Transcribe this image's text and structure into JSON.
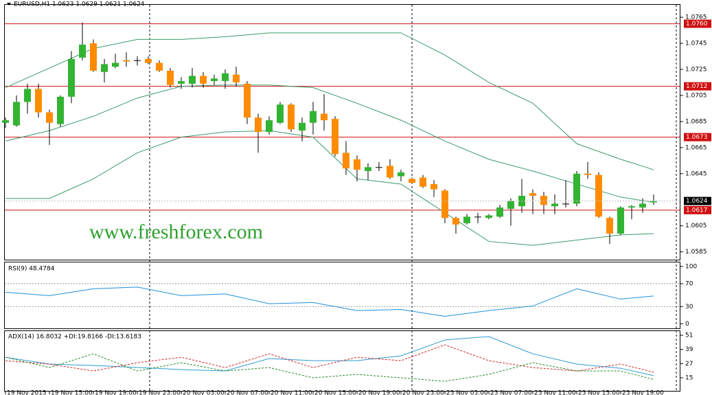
{
  "chart_data": [
    {
      "type": "candlestick",
      "title": "EURUSD,H1  1.0623 1.0629 1.0621 1.0624",
      "watermark": "www.freshforex.com",
      "categories": [
        "19 Nov 2015",
        null,
        null,
        null,
        "19 Nov 15:00",
        null,
        null,
        null,
        "19 Nov 19:00",
        null,
        null,
        null,
        "19 Nov 23:00",
        null,
        null,
        null,
        "20 Nov 03:00",
        null,
        null,
        null,
        "20 Nov 07:00",
        null,
        null,
        null,
        "20 Nov 11:00",
        null,
        null,
        null,
        "20 Nov 15:00",
        null,
        null,
        null,
        "20 Nov 19:00",
        null,
        null,
        null,
        "20 Nov 23:00",
        null,
        null,
        null,
        "23 Nov 03:00",
        null,
        null,
        null,
        "23 Nov 07:00",
        null,
        null,
        null,
        "23 Nov 11:00",
        null,
        null,
        null,
        "23 Nov 15:00",
        null,
        null,
        null,
        "23 Nov 19:00",
        null,
        null,
        null
      ],
      "open": [
        1.0684,
        1.0682,
        1.07,
        1.071,
        1.0692,
        1.0683,
        1.0704,
        1.0734,
        1.0745,
        1.0723,
        1.0727,
        1.0732,
        1.0732,
        1.0733,
        1.073,
        1.0724,
        1.0714,
        1.0714,
        1.072,
        1.0716,
        1.0716,
        1.0721,
        1.0714,
        1.0688,
        1.0677,
        1.0684,
        1.0698,
        1.0678,
        1.0684,
        1.0691,
        1.0687,
        1.0661,
        1.0656,
        1.0647,
        1.065,
        1.0651,
        1.0643,
        1.0641,
        1.0642,
        1.0637,
        1.0632,
        1.0611,
        1.0607,
        1.0612,
        1.0611,
        1.0612,
        1.0618,
        1.062,
        1.063,
        1.0628,
        1.062,
        1.0622,
        1.0622,
        1.0645,
        1.0644,
        1.0611,
        1.0599,
        1.0619,
        1.0619,
        1.0623
      ],
      "high": [
        1.0688,
        1.0705,
        1.0714,
        1.0714,
        1.0694,
        1.0705,
        1.0739,
        1.0761,
        1.0748,
        1.0733,
        1.0737,
        1.0738,
        1.0735,
        1.0735,
        1.0732,
        1.0726,
        1.0719,
        1.0726,
        1.0723,
        1.0721,
        1.0725,
        1.0727,
        1.0716,
        1.0691,
        1.0689,
        1.07,
        1.0699,
        1.0688,
        1.07,
        1.0706,
        1.0689,
        1.067,
        1.0659,
        1.0653,
        1.0654,
        1.0656,
        1.0648,
        1.0642,
        1.0644,
        1.064,
        1.0633,
        1.0612,
        1.0614,
        1.0615,
        1.0614,
        1.0621,
        1.0626,
        1.0641,
        1.0633,
        1.0631,
        1.0629,
        1.064,
        1.0647,
        1.0654,
        1.0646,
        1.0612,
        1.062,
        1.0621,
        1.0626,
        1.0629
      ],
      "low": [
        1.068,
        1.0681,
        1.0691,
        1.0688,
        1.0667,
        1.0681,
        1.0699,
        1.0732,
        1.0723,
        1.0715,
        1.0726,
        1.0727,
        1.0728,
        1.0729,
        1.0723,
        1.0711,
        1.071,
        1.0711,
        1.0711,
        1.0713,
        1.071,
        1.0712,
        1.0683,
        1.0661,
        1.0675,
        1.0683,
        1.0677,
        1.067,
        1.0675,
        1.0678,
        1.0658,
        1.0644,
        1.0639,
        1.064,
        1.0647,
        1.0641,
        1.0639,
        1.0637,
        1.0634,
        1.0627,
        1.0607,
        1.0599,
        1.0606,
        1.0607,
        1.061,
        1.0611,
        1.0605,
        1.0615,
        1.0614,
        1.0614,
        1.0614,
        1.0619,
        1.062,
        1.0641,
        1.0611,
        1.0591,
        1.0598,
        1.061,
        1.0615,
        1.0621
      ],
      "close": [
        1.0686,
        1.07,
        1.071,
        1.0692,
        1.0684,
        1.0704,
        1.0733,
        1.0744,
        1.0724,
        1.0729,
        1.073,
        1.0731,
        1.0732,
        1.073,
        1.0724,
        1.0713,
        1.0716,
        1.072,
        1.0714,
        1.0718,
        1.0722,
        1.0715,
        1.0688,
        1.0677,
        1.0686,
        1.0698,
        1.0679,
        1.0684,
        1.0693,
        1.0686,
        1.066,
        1.0649,
        1.0648,
        1.065,
        1.065,
        1.0642,
        1.0646,
        1.0638,
        1.0635,
        1.0633,
        1.0611,
        1.0606,
        1.0612,
        1.0612,
        1.0613,
        1.0619,
        1.0624,
        1.0628,
        1.0628,
        1.0621,
        1.0622,
        1.0622,
        1.0645,
        1.0644,
        1.0612,
        1.0599,
        1.0619,
        1.062,
        1.0622,
        1.0624
      ],
      "up_color": "#32b432",
      "down_color": "#ff8c00",
      "doji_color": "#000000",
      "bands": {
        "color": "#3a9a6a",
        "x": [
          0,
          4,
          8,
          12,
          16,
          20,
          24,
          28,
          32,
          36,
          40,
          44,
          48,
          52,
          56,
          59
        ],
        "upper": [
          1.0711,
          1.0726,
          1.0741,
          1.0748,
          1.0748,
          1.075,
          1.0753,
          1.0753,
          1.0753,
          1.0753,
          1.0736,
          1.0715,
          1.0699,
          1.0668,
          1.0656,
          1.0648
        ],
        "middle": [
          1.067,
          1.0678,
          1.0689,
          1.0703,
          1.0712,
          1.0713,
          1.0713,
          1.0711,
          1.0699,
          1.0686,
          1.067,
          1.0656,
          1.0647,
          1.0637,
          1.0627,
          1.0623
        ],
        "lower": [
          1.0626,
          1.0626,
          1.0641,
          1.0661,
          1.0673,
          1.0677,
          1.0678,
          1.0673,
          1.0641,
          1.0637,
          1.0615,
          1.0593,
          1.059,
          1.0594,
          1.0598,
          1.0599
        ]
      },
      "levels": [
        {
          "value": 1.076,
          "label": "1.0760"
        },
        1.0712,
        1.0673,
        1.0617
      ],
      "level_color": "#d01010",
      "current": 1.0624,
      "ylim": [
        1.0579,
        1.0774
      ],
      "yticks": [
        1.0765,
        1.0745,
        1.0725,
        1.0705,
        1.0685,
        1.0665,
        1.0645,
        1.0605,
        1.0585
      ]
    },
    {
      "type": "line",
      "title": "RSI(9) 48.4784",
      "x": [
        0,
        4,
        8,
        12,
        16,
        20,
        24,
        28,
        32,
        36,
        40,
        44,
        48,
        52,
        56,
        59
      ],
      "series": [
        {
          "color": "#1e90dc",
          "values": [
            55,
            49,
            61,
            64,
            49,
            52,
            35,
            37,
            23,
            25,
            13,
            23,
            31,
            61,
            43,
            48.4784
          ]
        }
      ],
      "levels": [
        30,
        70
      ],
      "ylim": [
        -8,
        107
      ],
      "yticks": [
        0,
        30,
        70,
        100
      ]
    },
    {
      "type": "line",
      "title": "ADX(14) 16.8032 +DI:19.8166 -DI:13.6183",
      "x": [
        0,
        4,
        8,
        12,
        16,
        20,
        24,
        28,
        32,
        36,
        40,
        44,
        48,
        52,
        56,
        59
      ],
      "series": [
        {
          "color": "#2a9ad0",
          "values": [
            32.4,
            26.6,
            25.5,
            23.7,
            22.0,
            20.8,
            31.3,
            29.5,
            29.5,
            33.6,
            47.0,
            49.9,
            35.3,
            26.6,
            23.1,
            16.8032
          ]
        },
        {
          "color": "#cc2222",
          "dashed": true,
          "values": [
            29.5,
            26.6,
            20.8,
            27.8,
            32.4,
            23.7,
            35.3,
            23.7,
            32.4,
            29.5,
            42.9,
            29.5,
            23.7,
            20.8,
            26.6,
            19.8166
          ]
        },
        {
          "color": "#228822",
          "dashed": true,
          "values": [
            32.4,
            23.7,
            35.3,
            20.8,
            27.8,
            20.8,
            23.7,
            15.0,
            17.9,
            15.0,
            12.1,
            17.9,
            27.8,
            20.8,
            20.8,
            13.6183
          ]
        }
      ],
      "ylim": [
        3.4,
        54.5
      ],
      "yticks": [
        15,
        27,
        39,
        51
      ]
    }
  ]
}
